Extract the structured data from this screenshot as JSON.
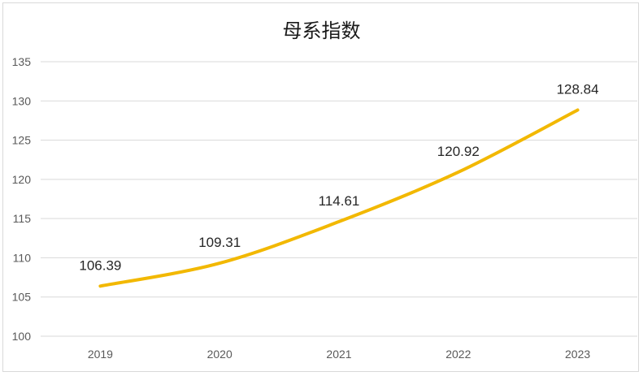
{
  "chart_data": {
    "type": "line",
    "title": "母系指数",
    "categories": [
      "2019",
      "2020",
      "2021",
      "2022",
      "2023"
    ],
    "series": [
      {
        "values": [
          106.39,
          109.31,
          114.61,
          120.92,
          128.84
        ]
      }
    ],
    "data_labels": [
      "106.39",
      "109.31",
      "114.61",
      "120.92",
      "128.84"
    ],
    "ylim": [
      100,
      135
    ],
    "yticks": [
      100,
      105,
      110,
      115,
      120,
      125,
      130,
      135
    ],
    "grid": true,
    "legend": "none",
    "colors": {
      "line": "#f2b800",
      "grid": "#d9d9d9",
      "axis_text": "#595959"
    }
  }
}
